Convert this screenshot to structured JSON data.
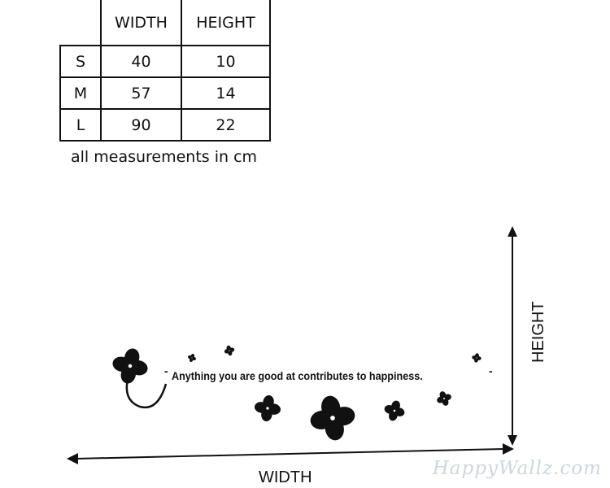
{
  "size_table": {
    "headers": [
      "",
      "WIDTH",
      "HEIGHT"
    ],
    "rows": [
      {
        "size": "S",
        "width": "40",
        "height": "10"
      },
      {
        "size": "M",
        "width": "57",
        "height": "14"
      },
      {
        "size": "L",
        "width": "90",
        "height": "22"
      }
    ],
    "note": "all measurements in cm"
  },
  "diagram": {
    "width_label": "WIDTH",
    "height_label": "HEIGHT",
    "quote": "Anything you are good at contributes to happiness.",
    "quote_dash_left": "-",
    "quote_dash_right": "-"
  },
  "watermark": "HappyWallz.com",
  "colors": {
    "ink": "#111111",
    "watermark": "#cfd6dc",
    "background": "#ffffff"
  }
}
